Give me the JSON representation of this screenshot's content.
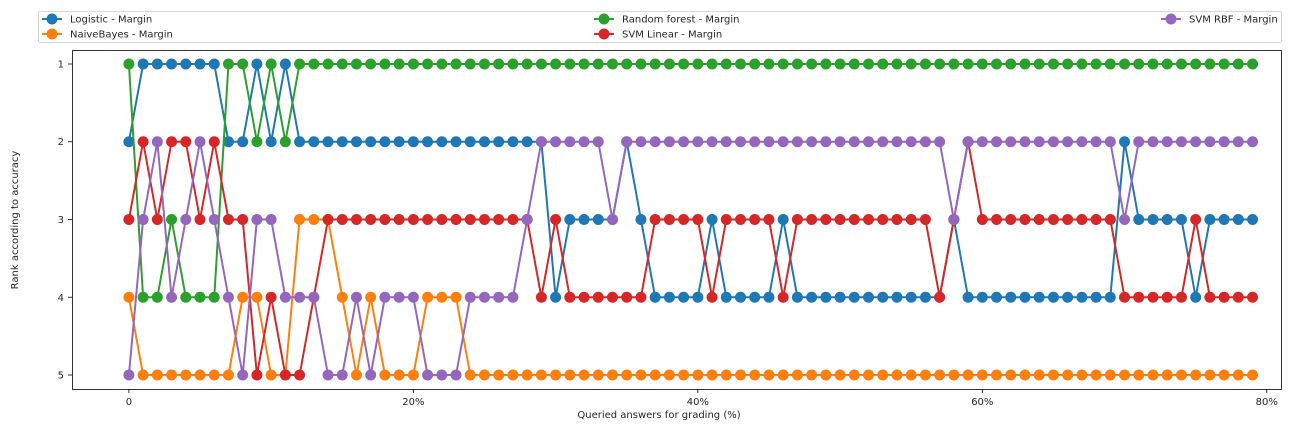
{
  "chart_data": {
    "type": "line",
    "xlabel": "Queried answers for grading (%)",
    "ylabel": "Rank according to accuracy",
    "xlim": [
      -4,
      81
    ],
    "ylim": [
      5.18,
      0.82
    ],
    "x_ticks": [
      0,
      20,
      40,
      60,
      80
    ],
    "x_tick_labels": [
      "0",
      "20%",
      "40%",
      "60%",
      "80%"
    ],
    "y_ticks": [
      1,
      2,
      3,
      4,
      5
    ],
    "y_tick_labels": [
      "1",
      "2",
      "3",
      "4",
      "5"
    ],
    "grid": false,
    "legend": "top, 3 columns",
    "series": [
      {
        "name": "Logistic - Margin",
        "color": "#1f77b4",
        "values": [
          2,
          1,
          1,
          1,
          1,
          1,
          1,
          2,
          2,
          1,
          2,
          1,
          2,
          2,
          2,
          2,
          2,
          2,
          2,
          2,
          2,
          2,
          2,
          2,
          2,
          2,
          2,
          2,
          2,
          2,
          4,
          3,
          3,
          3,
          3,
          2,
          3,
          4,
          4,
          4,
          4,
          3,
          4,
          4,
          4,
          4,
          3,
          4,
          4,
          4,
          4,
          4,
          4,
          4,
          4,
          4,
          4,
          4,
          3,
          4,
          4,
          4,
          4,
          4,
          4,
          4,
          4,
          4,
          4,
          4,
          2,
          3,
          3,
          3,
          3,
          4,
          3,
          3,
          3,
          3
        ]
      },
      {
        "name": "NaiveBayes - Margin",
        "color": "#ff7f0e",
        "values": [
          4,
          5,
          5,
          5,
          5,
          5,
          5,
          5,
          4,
          4,
          5,
          5,
          3,
          3,
          3,
          4,
          5,
          4,
          5,
          5,
          5,
          4,
          4,
          4,
          5,
          5,
          5,
          5,
          5,
          5,
          5,
          5,
          5,
          5,
          5,
          5,
          5,
          5,
          5,
          5,
          5,
          5,
          5,
          5,
          5,
          5,
          5,
          5,
          5,
          5,
          5,
          5,
          5,
          5,
          5,
          5,
          5,
          5,
          5,
          5,
          5,
          5,
          5,
          5,
          5,
          5,
          5,
          5,
          5,
          5,
          5,
          5,
          5,
          5,
          5,
          5,
          5,
          5,
          5,
          5
        ]
      },
      {
        "name": "Random forest - Margin",
        "color": "#2ca02c",
        "values": [
          1,
          4,
          4,
          3,
          4,
          4,
          4,
          1,
          1,
          2,
          1,
          2,
          1,
          1,
          1,
          1,
          1,
          1,
          1,
          1,
          1,
          1,
          1,
          1,
          1,
          1,
          1,
          1,
          1,
          1,
          1,
          1,
          1,
          1,
          1,
          1,
          1,
          1,
          1,
          1,
          1,
          1,
          1,
          1,
          1,
          1,
          1,
          1,
          1,
          1,
          1,
          1,
          1,
          1,
          1,
          1,
          1,
          1,
          1,
          1,
          1,
          1,
          1,
          1,
          1,
          1,
          1,
          1,
          1,
          1,
          1,
          1,
          1,
          1,
          1,
          1,
          1,
          1,
          1,
          1
        ]
      },
      {
        "name": "SVM Linear - Margin",
        "color": "#d62728",
        "values": [
          3,
          2,
          3,
          2,
          2,
          3,
          2,
          3,
          3,
          5,
          4,
          5,
          5,
          4,
          3,
          3,
          3,
          3,
          3,
          3,
          3,
          3,
          3,
          3,
          3,
          3,
          3,
          3,
          3,
          4,
          3,
          4,
          4,
          4,
          4,
          4,
          4,
          3,
          3,
          3,
          3,
          4,
          3,
          3,
          3,
          3,
          4,
          3,
          3,
          3,
          3,
          3,
          3,
          3,
          3,
          3,
          3,
          4,
          3,
          2,
          3,
          3,
          3,
          3,
          3,
          3,
          3,
          3,
          3,
          3,
          4,
          4,
          4,
          4,
          4,
          3,
          4,
          4,
          4,
          4
        ]
      },
      {
        "name": "SVM RBF - Margin",
        "color": "#9467bd",
        "values": [
          5,
          3,
          2,
          4,
          3,
          2,
          3,
          4,
          5,
          3,
          3,
          4,
          4,
          4,
          5,
          5,
          4,
          5,
          4,
          4,
          4,
          5,
          5,
          5,
          4,
          4,
          4,
          4,
          3,
          2,
          2,
          2,
          2,
          2,
          3,
          2,
          2,
          2,
          2,
          2,
          2,
          2,
          2,
          2,
          2,
          2,
          2,
          2,
          2,
          2,
          2,
          2,
          2,
          2,
          2,
          2,
          2,
          2,
          3,
          2,
          2,
          2,
          2,
          2,
          2,
          2,
          2,
          2,
          2,
          2,
          3,
          2,
          2,
          2,
          2,
          2,
          2,
          2,
          2,
          2
        ]
      }
    ]
  }
}
